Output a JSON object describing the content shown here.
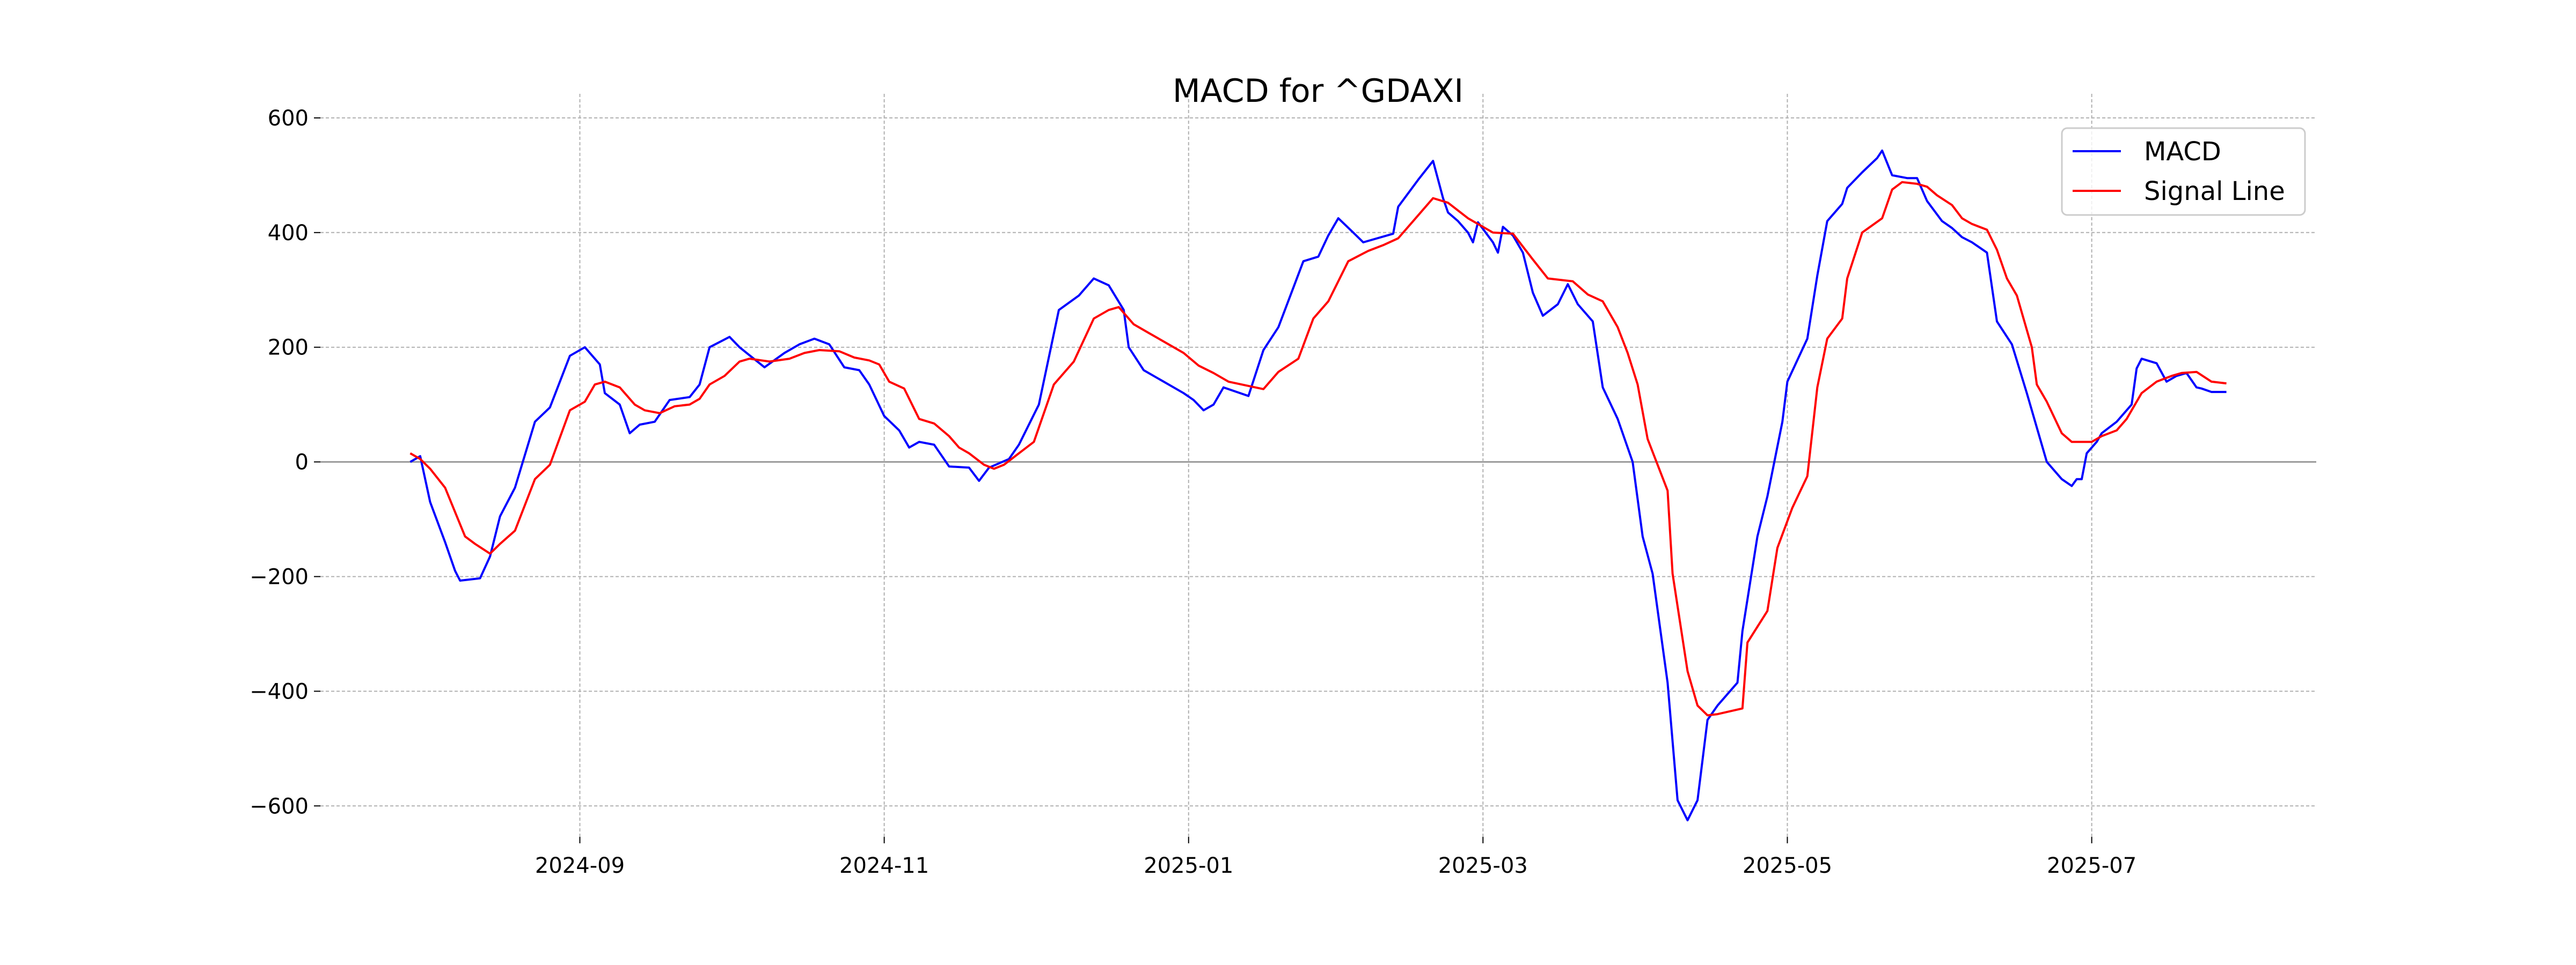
{
  "chart_data": {
    "type": "line",
    "title": "MACD for ^GDAXI",
    "xlabel": "",
    "ylabel": "",
    "x_unit": "days since 2024-07-29",
    "x_start_date": "2024-07-29",
    "xlim": [
      -18,
      382
    ],
    "ylim": [
      -654,
      642
    ],
    "grid": true,
    "legend_position": "top-right",
    "y_ticks": [
      {
        "value": 600,
        "label": "600"
      },
      {
        "value": 400,
        "label": "400"
      },
      {
        "value": 200,
        "label": "200"
      },
      {
        "value": 0,
        "label": "0"
      },
      {
        "value": -200,
        "label": "−200"
      },
      {
        "value": -400,
        "label": "−400"
      },
      {
        "value": -600,
        "label": "−600"
      }
    ],
    "x_ticks": [
      {
        "value": 34,
        "label": "2024-09"
      },
      {
        "value": 95,
        "label": "2024-11"
      },
      {
        "value": 156,
        "label": "2025-01"
      },
      {
        "value": 215,
        "label": "2025-03"
      },
      {
        "value": 276,
        "label": "2025-05"
      },
      {
        "value": 337,
        "label": "2025-07"
      }
    ],
    "series": [
      {
        "name": "MACD",
        "color": "#0000ff",
        "points": [
          [
            0,
            0
          ],
          [
            2,
            10
          ],
          [
            4,
            -70
          ],
          [
            7,
            -140
          ],
          [
            9,
            -190
          ],
          [
            10,
            -207
          ],
          [
            14,
            -203
          ],
          [
            16,
            -165
          ],
          [
            18,
            -95
          ],
          [
            21,
            -45
          ],
          [
            25,
            70
          ],
          [
            28,
            95
          ],
          [
            32,
            185
          ],
          [
            35,
            200
          ],
          [
            38,
            170
          ],
          [
            39,
            120
          ],
          [
            42,
            100
          ],
          [
            44,
            50
          ],
          [
            46,
            65
          ],
          [
            49,
            70
          ],
          [
            52,
            108
          ],
          [
            56,
            113
          ],
          [
            58,
            135
          ],
          [
            60,
            200
          ],
          [
            64,
            218
          ],
          [
            66,
            200
          ],
          [
            71,
            165
          ],
          [
            75,
            190
          ],
          [
            78,
            205
          ],
          [
            81,
            215
          ],
          [
            84,
            205
          ],
          [
            87,
            165
          ],
          [
            90,
            160
          ],
          [
            92,
            135
          ],
          [
            95,
            80
          ],
          [
            98,
            55
          ],
          [
            100,
            25
          ],
          [
            102,
            35
          ],
          [
            105,
            30
          ],
          [
            108,
            -8
          ],
          [
            112,
            -10
          ],
          [
            114,
            -33
          ],
          [
            116,
            -10
          ],
          [
            120,
            5
          ],
          [
            122,
            30
          ],
          [
            126,
            100
          ],
          [
            130,
            265
          ],
          [
            134,
            290
          ],
          [
            137,
            320
          ],
          [
            140,
            308
          ],
          [
            143,
            265
          ],
          [
            144,
            200
          ],
          [
            147,
            160
          ],
          [
            151,
            140
          ],
          [
            155,
            120
          ],
          [
            157,
            108
          ],
          [
            159,
            90
          ],
          [
            161,
            100
          ],
          [
            163,
            130
          ],
          [
            168,
            115
          ],
          [
            171,
            195
          ],
          [
            174,
            235
          ],
          [
            179,
            350
          ],
          [
            182,
            358
          ],
          [
            184,
            395
          ],
          [
            186,
            425
          ],
          [
            189,
            400
          ],
          [
            191,
            383
          ],
          [
            197,
            398
          ],
          [
            198,
            445
          ],
          [
            202,
            492
          ],
          [
            205,
            525
          ],
          [
            207,
            460
          ],
          [
            208,
            435
          ],
          [
            210,
            420
          ],
          [
            212,
            400
          ],
          [
            213,
            383
          ],
          [
            214,
            418
          ],
          [
            217,
            383
          ],
          [
            218,
            365
          ],
          [
            219,
            410
          ],
          [
            221,
            395
          ],
          [
            223,
            365
          ],
          [
            225,
            295
          ],
          [
            227,
            255
          ],
          [
            230,
            275
          ],
          [
            232,
            310
          ],
          [
            234,
            275
          ],
          [
            237,
            245
          ],
          [
            239,
            130
          ],
          [
            242,
            75
          ],
          [
            245,
            0
          ],
          [
            247,
            -130
          ],
          [
            249,
            -195
          ],
          [
            252,
            -385
          ],
          [
            254,
            -590
          ],
          [
            256,
            -625
          ],
          [
            258,
            -590
          ],
          [
            260,
            -450
          ],
          [
            262,
            -425
          ],
          [
            266,
            -385
          ],
          [
            267,
            -295
          ],
          [
            270,
            -130
          ],
          [
            272,
            -60
          ],
          [
            275,
            70
          ],
          [
            276,
            140
          ],
          [
            280,
            215
          ],
          [
            282,
            325
          ],
          [
            284,
            420
          ],
          [
            287,
            450
          ],
          [
            288,
            478
          ],
          [
            291,
            505
          ],
          [
            294,
            530
          ],
          [
            295,
            543
          ],
          [
            297,
            500
          ],
          [
            300,
            495
          ],
          [
            302,
            495
          ],
          [
            304,
            455
          ],
          [
            307,
            420
          ],
          [
            309,
            408
          ],
          [
            311,
            392
          ],
          [
            313,
            383
          ],
          [
            316,
            365
          ],
          [
            318,
            245
          ],
          [
            321,
            205
          ],
          [
            324,
            120
          ],
          [
            326,
            60
          ],
          [
            328,
            0
          ],
          [
            331,
            -30
          ],
          [
            333,
            -42
          ],
          [
            334,
            -30
          ],
          [
            335,
            -30
          ],
          [
            336,
            15
          ],
          [
            338,
            35
          ],
          [
            339,
            50
          ],
          [
            342,
            70
          ],
          [
            345,
            100
          ],
          [
            346,
            163
          ],
          [
            347,
            180
          ],
          [
            350,
            172
          ],
          [
            352,
            140
          ],
          [
            354,
            150
          ],
          [
            356,
            155
          ],
          [
            358,
            130
          ],
          [
            359,
            128
          ],
          [
            361,
            122
          ],
          [
            364,
            122
          ]
        ]
      },
      {
        "name": "Signal Line",
        "color": "#ff0000",
        "points": [
          [
            0,
            15
          ],
          [
            2,
            5
          ],
          [
            4,
            -12
          ],
          [
            7,
            -45
          ],
          [
            11,
            -130
          ],
          [
            13,
            -143
          ],
          [
            16,
            -160
          ],
          [
            18,
            -143
          ],
          [
            21,
            -120
          ],
          [
            25,
            -30
          ],
          [
            28,
            -5
          ],
          [
            32,
            90
          ],
          [
            35,
            105
          ],
          [
            37,
            135
          ],
          [
            39,
            140
          ],
          [
            42,
            130
          ],
          [
            45,
            100
          ],
          [
            47,
            90
          ],
          [
            50,
            85
          ],
          [
            53,
            97
          ],
          [
            56,
            100
          ],
          [
            58,
            110
          ],
          [
            60,
            135
          ],
          [
            63,
            150
          ],
          [
            66,
            175
          ],
          [
            68,
            180
          ],
          [
            72,
            175
          ],
          [
            76,
            180
          ],
          [
            79,
            190
          ],
          [
            82,
            195
          ],
          [
            86,
            193
          ],
          [
            89,
            182
          ],
          [
            92,
            177
          ],
          [
            94,
            170
          ],
          [
            96,
            140
          ],
          [
            99,
            128
          ],
          [
            102,
            75
          ],
          [
            105,
            67
          ],
          [
            108,
            45
          ],
          [
            110,
            25
          ],
          [
            112,
            15
          ],
          [
            115,
            -5
          ],
          [
            117,
            -12
          ],
          [
            119,
            -5
          ],
          [
            122,
            15
          ],
          [
            125,
            35
          ],
          [
            129,
            135
          ],
          [
            133,
            175
          ],
          [
            137,
            250
          ],
          [
            140,
            265
          ],
          [
            142,
            270
          ],
          [
            145,
            240
          ],
          [
            148,
            225
          ],
          [
            151,
            210
          ],
          [
            155,
            190
          ],
          [
            158,
            168
          ],
          [
            161,
            155
          ],
          [
            164,
            140
          ],
          [
            171,
            127
          ],
          [
            174,
            157
          ],
          [
            178,
            180
          ],
          [
            181,
            250
          ],
          [
            184,
            280
          ],
          [
            188,
            350
          ],
          [
            192,
            368
          ],
          [
            195,
            378
          ],
          [
            198,
            390
          ],
          [
            201,
            420
          ],
          [
            205,
            460
          ],
          [
            208,
            452
          ],
          [
            212,
            425
          ],
          [
            214,
            415
          ],
          [
            217,
            400
          ],
          [
            221,
            398
          ],
          [
            225,
            353
          ],
          [
            228,
            320
          ],
          [
            233,
            315
          ],
          [
            236,
            292
          ],
          [
            239,
            280
          ],
          [
            242,
            235
          ],
          [
            244,
            190
          ],
          [
            246,
            135
          ],
          [
            248,
            40
          ],
          [
            252,
            -50
          ],
          [
            253,
            -195
          ],
          [
            256,
            -365
          ],
          [
            258,
            -425
          ],
          [
            260,
            -442
          ],
          [
            262,
            -440
          ],
          [
            267,
            -430
          ],
          [
            268,
            -315
          ],
          [
            272,
            -260
          ],
          [
            274,
            -150
          ],
          [
            277,
            -80
          ],
          [
            280,
            -25
          ],
          [
            282,
            130
          ],
          [
            284,
            215
          ],
          [
            287,
            250
          ],
          [
            288,
            320
          ],
          [
            291,
            400
          ],
          [
            295,
            425
          ],
          [
            297,
            475
          ],
          [
            299,
            488
          ],
          [
            302,
            485
          ],
          [
            304,
            480
          ],
          [
            306,
            465
          ],
          [
            309,
            448
          ],
          [
            311,
            425
          ],
          [
            313,
            415
          ],
          [
            316,
            405
          ],
          [
            318,
            370
          ],
          [
            320,
            320
          ],
          [
            322,
            290
          ],
          [
            325,
            200
          ],
          [
            326,
            135
          ],
          [
            328,
            105
          ],
          [
            331,
            50
          ],
          [
            333,
            35
          ],
          [
            337,
            35
          ],
          [
            339,
            45
          ],
          [
            342,
            55
          ],
          [
            344,
            75
          ],
          [
            347,
            120
          ],
          [
            350,
            140
          ],
          [
            353,
            150
          ],
          [
            355,
            155
          ],
          [
            358,
            157
          ],
          [
            361,
            140
          ],
          [
            364,
            137
          ]
        ]
      }
    ]
  }
}
